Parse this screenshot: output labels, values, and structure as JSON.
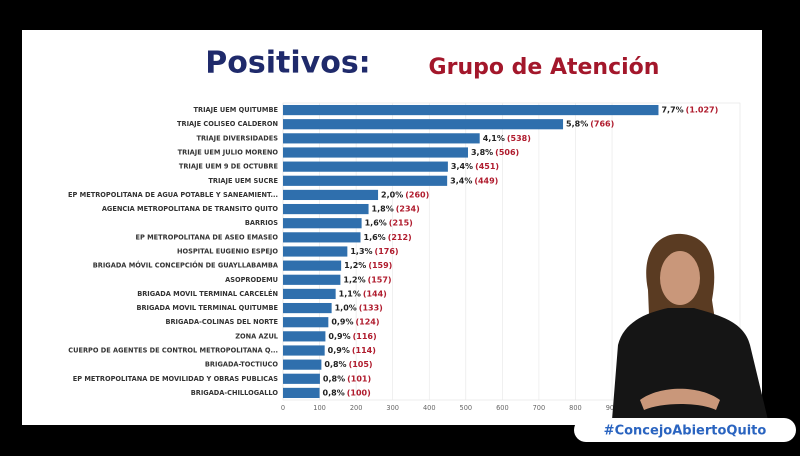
{
  "chart_data": {
    "type": "barh",
    "title": "Positivos:",
    "subtitle": "Grupo de Atención",
    "categories": [
      "TRIAJE UEM QUITUMBE",
      "TRIAJE COLISEO CALDERON",
      "TRIAJE DIVERSIDADES",
      "TRIAJE UEM JULIO MORENO",
      "TRIAJE UEM 9 DE OCTUBRE",
      "TRIAJE UEM SUCRE",
      "EP METROPOLITANA DE AGUA POTABLE Y SANEAMIENT...",
      "AGENCIA METROPOLITANA DE TRANSITO QUITO",
      "BARRIOS",
      "EP METROPOLITANA DE ASEO EMASEO",
      "HOSPITAL EUGENIO ESPEJO",
      "BRIGADA MÓVIL CONCEPCIÓN DE GUAYLLABAMBA",
      "ASOPRODEMU",
      "BRIGADA MOVIL TERMINAL CARCELÉN",
      "BRIGADA MOVIL TERMINAL QUITUMBE",
      "BRIGADA-COLINAS DEL NORTE",
      "ZONA AZUL",
      "CUERPO DE AGENTES DE CONTROL METROPOLITANA Q...",
      "BRIGADA-TOCTIUCO",
      "EP METROPOLITANA DE MOVILIDAD Y OBRAS PUBLICAS",
      "BRIGADA-CHILLOGALLO"
    ],
    "values": [
      1027,
      766,
      538,
      506,
      451,
      449,
      260,
      234,
      215,
      212,
      176,
      159,
      157,
      144,
      133,
      124,
      116,
      114,
      105,
      101,
      100
    ],
    "value_labels": [
      "(1.027)",
      "(766)",
      "(538)",
      "(506)",
      "(451)",
      "(449)",
      "(260)",
      "(234)",
      "(215)",
      "(212)",
      "(176)",
      "(159)",
      "(157)",
      "(144)",
      "(133)",
      "(124)",
      "(116)",
      "(114)",
      "(105)",
      "(101)",
      "(100)"
    ],
    "percent_labels": [
      "7,7%",
      "5,8%",
      "4,1%",
      "3,8%",
      "3,4%",
      "3,4%",
      "2,0%",
      "1,8%",
      "1,6%",
      "1,6%",
      "1,3%",
      "1,2%",
      "1,2%",
      "1,1%",
      "1,0%",
      "0,9%",
      "0,9%",
      "0,9%",
      "0,8%",
      "0,8%",
      "0,8%"
    ],
    "color": "#2f6fad",
    "xlim": [
      0,
      1250
    ],
    "xticks": [
      0,
      100,
      200,
      300,
      400,
      500,
      600,
      700,
      800,
      900
    ]
  },
  "hashtag": "#ConcejoAbiertoQuito"
}
